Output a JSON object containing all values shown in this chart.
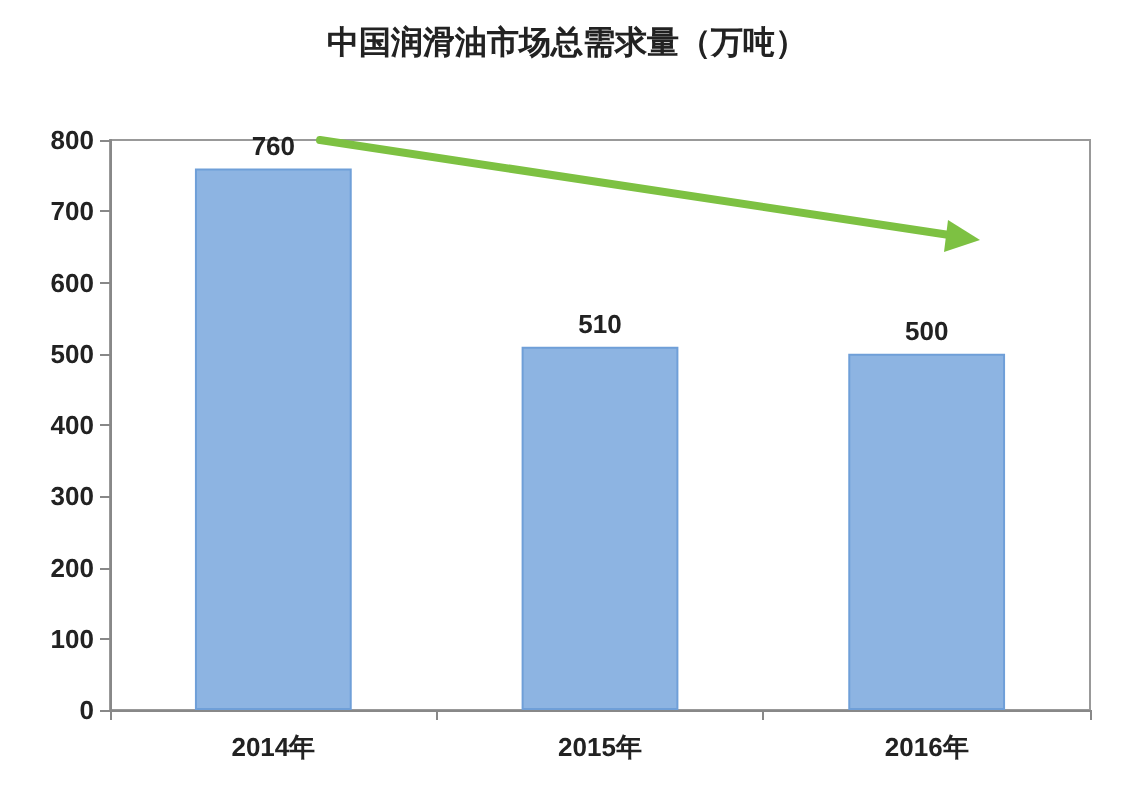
{
  "chart_data": {
    "type": "bar",
    "title": "中国润滑油市场总需求量（万吨）",
    "categories": [
      "2014年",
      "2015年",
      "2016年"
    ],
    "values": [
      760,
      510,
      500
    ],
    "color": "#8db4e2",
    "ylim": [
      0,
      800
    ],
    "yticks": [
      0,
      100,
      200,
      300,
      400,
      500,
      600,
      700,
      800
    ],
    "grid": false,
    "data_labels": true
  }
}
